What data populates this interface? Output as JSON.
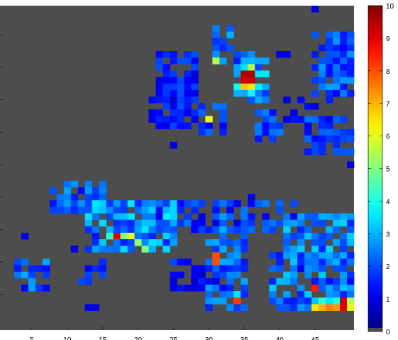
{
  "chart_data": {
    "type": "heatmap",
    "colormap": "jet",
    "background_color": "#4d4d4d",
    "zero_color": "#4d4d4d",
    "value_range": [
      0,
      10
    ],
    "grid_size": [
      50,
      50
    ],
    "colorbar": {
      "ticks": [
        0,
        1,
        2,
        3,
        4,
        5,
        6,
        7,
        8,
        9,
        10
      ],
      "labels": [
        "0",
        "1",
        "2",
        "3",
        "4",
        "5",
        "6",
        "7",
        "8",
        "9",
        "10"
      ]
    },
    "x_axis": {
      "ticks": [
        5,
        10,
        15,
        20,
        25,
        30,
        35,
        40,
        45
      ],
      "labels": [
        "5",
        "10",
        "15",
        "20",
        "25",
        "30",
        "35",
        "40",
        "45"
      ]
    },
    "y_axis": {
      "ticks": [
        5,
        10,
        15,
        20,
        25,
        30,
        35,
        40,
        45
      ],
      "labels": [
        "5",
        "10",
        "15",
        "20",
        "25",
        "30",
        "35",
        "40",
        "45"
      ]
    },
    "regions": [
      {
        "x0": 22,
        "y0": 7,
        "x1": 27,
        "y1": 18,
        "base": 1.3,
        "spread": 1.2,
        "density": 0.75
      },
      {
        "x0": 21,
        "y0": 14,
        "x1": 25,
        "y1": 17,
        "base": 1.1,
        "spread": 1.0,
        "density": 0.65
      },
      {
        "x0": 28,
        "y0": 15,
        "x1": 31,
        "y1": 19,
        "base": 1.6,
        "spread": 1.6,
        "density": 0.7
      },
      {
        "x0": 30,
        "y0": 3,
        "x1": 32,
        "y1": 8,
        "base": 2.0,
        "spread": 1.5,
        "density": 0.6
      },
      {
        "x0": 33,
        "y0": 7,
        "x1": 37,
        "y1": 14,
        "base": 2.5,
        "spread": 2.0,
        "density": 0.7
      },
      {
        "x0": 36,
        "y0": 16,
        "x1": 39,
        "y1": 20,
        "base": 1.8,
        "spread": 1.5,
        "density": 0.7
      },
      {
        "x0": 40,
        "y0": 14,
        "x1": 46,
        "y1": 17,
        "base": 1.2,
        "spread": 1.0,
        "density": 0.55
      },
      {
        "x0": 44,
        "y0": 4,
        "x1": 50,
        "y1": 13,
        "base": 1.8,
        "spread": 1.6,
        "density": 0.8
      },
      {
        "x0": 43,
        "y0": 17,
        "x1": 50,
        "y1": 22,
        "base": 1.6,
        "spread": 1.4,
        "density": 0.7
      },
      {
        "x0": 7,
        "y0": 27,
        "x1": 14,
        "y1": 31,
        "base": 1.8,
        "spread": 1.6,
        "density": 0.75
      },
      {
        "x0": 12,
        "y0": 30,
        "x1": 24,
        "y1": 37,
        "base": 2.2,
        "spread": 2.2,
        "density": 0.75
      },
      {
        "x0": 18,
        "y0": 30,
        "x1": 41,
        "y1": 34,
        "base": 1.5,
        "spread": 1.6,
        "density": 0.75
      },
      {
        "x0": 29,
        "y0": 32,
        "x1": 34,
        "y1": 46,
        "base": 1.8,
        "spread": 1.8,
        "density": 0.7
      },
      {
        "x0": 24,
        "y0": 39,
        "x1": 30,
        "y1": 43,
        "base": 1.2,
        "spread": 1.2,
        "density": 0.6
      },
      {
        "x0": 40,
        "y0": 32,
        "x1": 50,
        "y1": 38,
        "base": 2.2,
        "spread": 1.8,
        "density": 0.75
      },
      {
        "x0": 38,
        "y0": 38,
        "x1": 50,
        "y1": 46,
        "base": 2.0,
        "spread": 2.0,
        "density": 0.75
      },
      {
        "x0": 2,
        "y0": 39,
        "x1": 6,
        "y1": 43,
        "base": 1.8,
        "spread": 1.8,
        "density": 0.65
      },
      {
        "x0": 11,
        "y0": 39,
        "x1": 14,
        "y1": 42,
        "base": 1.3,
        "spread": 1.0,
        "density": 0.6
      }
    ],
    "singles": [
      [
        44,
        0,
        1
      ],
      [
        40,
        7,
        1
      ],
      [
        39,
        7,
        1
      ],
      [
        30,
        8,
        5.5
      ],
      [
        33,
        8,
        1.5
      ],
      [
        3,
        35,
        1
      ],
      [
        10,
        37,
        1
      ],
      [
        12,
        46,
        1
      ],
      [
        13,
        46,
        1
      ],
      [
        27,
        13,
        1
      ],
      [
        24,
        21,
        1
      ],
      [
        49,
        24,
        1
      ],
      [
        35,
        29,
        1
      ],
      [
        40,
        15,
        0
      ],
      [
        29,
        17,
        6
      ],
      [
        44,
        43,
        8.5
      ],
      [
        30,
        38,
        8
      ],
      [
        30,
        39,
        8
      ],
      [
        42,
        40,
        1
      ]
    ],
    "hotspots": [
      [
        34,
        10,
        9.5
      ],
      [
        35,
        10,
        9.6
      ],
      [
        34,
        11,
        9.2
      ],
      [
        35,
        11,
        9.3
      ],
      [
        35,
        9,
        5.5
      ],
      [
        34,
        9,
        3.5
      ],
      [
        35,
        12,
        6.5
      ],
      [
        34,
        12,
        6.8
      ],
      [
        33,
        12,
        3.8
      ],
      [
        16,
        35,
        9.0
      ],
      [
        17,
        35,
        5.0
      ],
      [
        18,
        35,
        6.0
      ],
      [
        19,
        36,
        5.2
      ],
      [
        20,
        37,
        5.0
      ],
      [
        15,
        35,
        4.2
      ],
      [
        21,
        36,
        3.5
      ],
      [
        44,
        46,
        6.5
      ],
      [
        45,
        46,
        7.0
      ],
      [
        46,
        46,
        7.5
      ],
      [
        47,
        46,
        7.2
      ],
      [
        48,
        46,
        9.0
      ],
      [
        49,
        46,
        6.0
      ],
      [
        48,
        45,
        9.2
      ],
      [
        47,
        45,
        4.0
      ],
      [
        49,
        45,
        5.5
      ],
      [
        46,
        45,
        3.5
      ],
      [
        45,
        45,
        4.2
      ],
      [
        33,
        45,
        8.2
      ],
      [
        33,
        44,
        3.5
      ],
      [
        32,
        44,
        2.5
      ]
    ]
  }
}
